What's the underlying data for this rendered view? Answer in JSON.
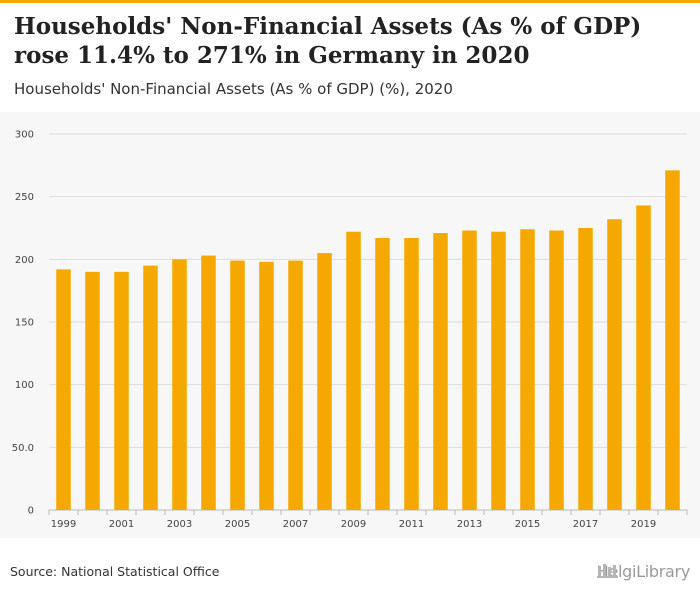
{
  "header": {
    "title": "Households' Non-Financial Assets (As % of GDP) rose 11.4% to 271% in Germany in 2020",
    "subtitle": "Households' Non-Financial Assets (As % of GDP) (%), 2020"
  },
  "footer": {
    "source": "Source: National Statistical Office",
    "brand": "HelgiLibrary"
  },
  "colors": {
    "accent": "#f5a800",
    "bar": "#f5a800",
    "grid": "#dddddd"
  },
  "chart_data": {
    "type": "bar",
    "title": "Households' Non-Financial Assets (As % of GDP) (%), 2020",
    "xlabel": "",
    "ylabel": "",
    "categories": [
      "1999",
      "2000",
      "2001",
      "2002",
      "2003",
      "2004",
      "2005",
      "2006",
      "2007",
      "2008",
      "2009",
      "2010",
      "2011",
      "2012",
      "2013",
      "2014",
      "2015",
      "2016",
      "2017",
      "2018",
      "2019",
      "2020"
    ],
    "values": [
      192,
      190,
      190,
      195,
      200,
      203,
      199,
      198,
      199,
      205,
      222,
      217,
      217,
      221,
      223,
      222,
      224,
      223,
      225,
      232,
      243,
      271
    ],
    "ylim": [
      0,
      300
    ],
    "yticks": [
      0,
      50,
      100,
      150,
      200,
      250,
      300
    ],
    "ytick_labels": [
      "0",
      "50.0",
      "100",
      "150",
      "200",
      "250",
      "300"
    ],
    "xtick_labels": [
      "1999",
      "2001",
      "2003",
      "2005",
      "2007",
      "2009",
      "2011",
      "2013",
      "2015",
      "2017",
      "2019"
    ],
    "grid": true,
    "legend": "none"
  }
}
